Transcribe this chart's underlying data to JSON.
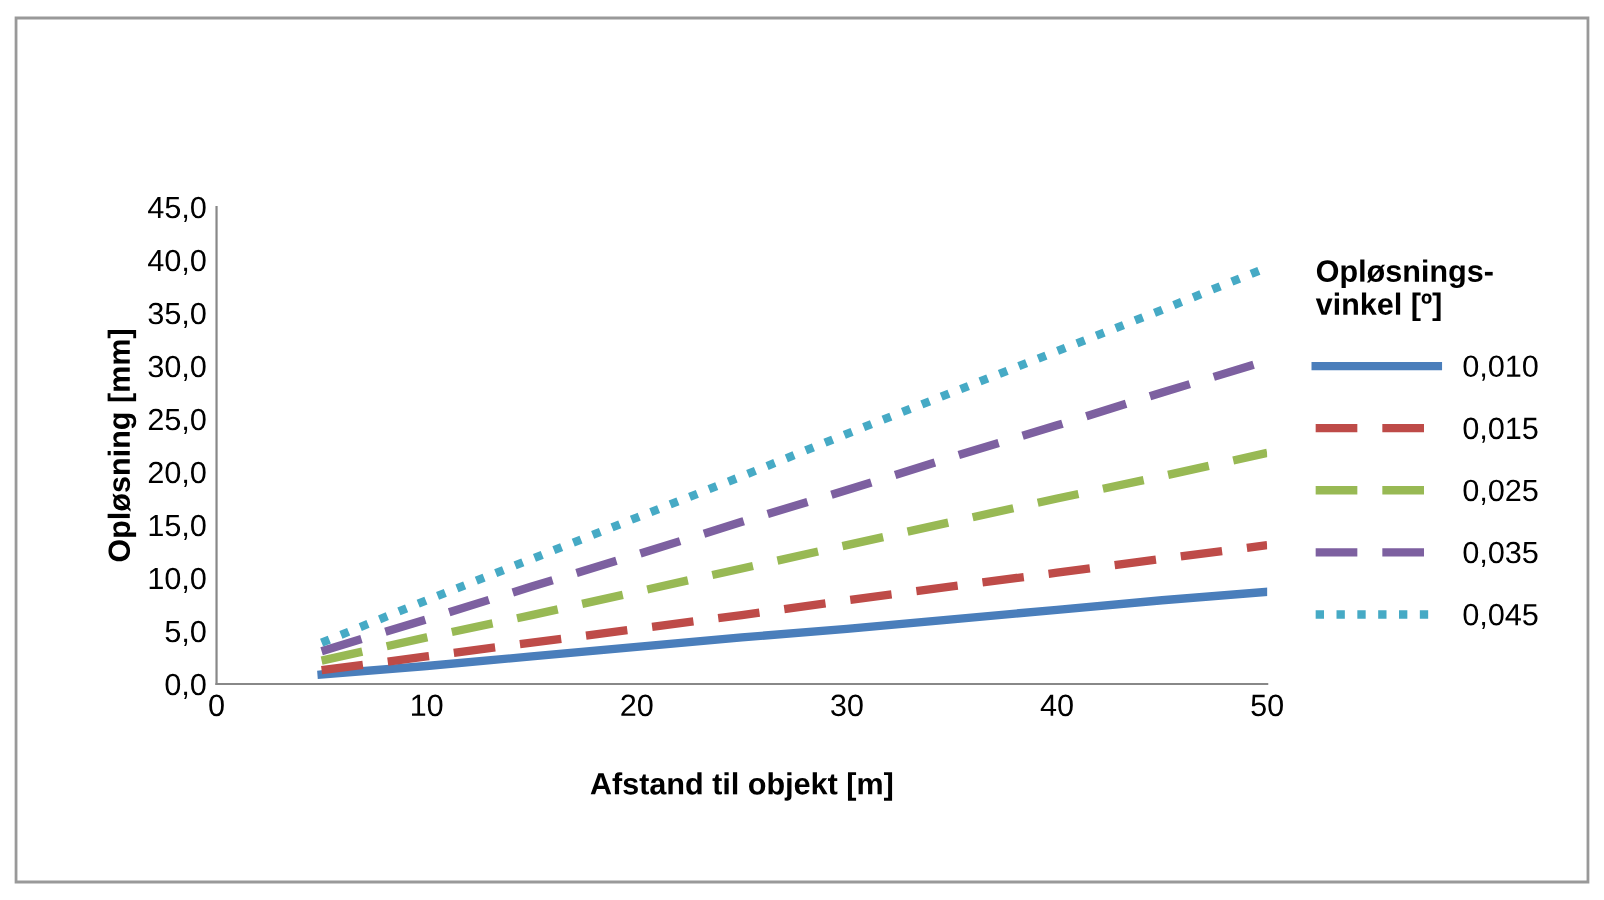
{
  "chart_data": {
    "type": "line",
    "xlabel": "Afstand til objekt [m]",
    "ylabel": "Opløsning [mm]",
    "legend_title": "Opløsnings-\nvinkel [º]",
    "x": [
      5,
      10,
      15,
      20,
      25,
      30,
      35,
      40,
      45,
      50
    ],
    "series": [
      {
        "name": "0,010",
        "color": "#4a7ebb",
        "line_style": "solid",
        "values": [
          0.9,
          1.7,
          2.6,
          3.5,
          4.4,
          5.2,
          6.1,
          7.0,
          7.9,
          8.7
        ]
      },
      {
        "name": "0,015",
        "color": "#be4b48",
        "line_style": "dashed",
        "values": [
          1.3,
          2.6,
          3.9,
          5.2,
          6.5,
          7.9,
          9.2,
          10.5,
          11.8,
          13.1
        ]
      },
      {
        "name": "0,025",
        "color": "#98b954",
        "line_style": "dashed",
        "values": [
          2.2,
          4.4,
          6.5,
          8.7,
          10.9,
          13.1,
          15.3,
          17.5,
          19.6,
          21.8
        ]
      },
      {
        "name": "0,035",
        "color": "#7d60a0",
        "line_style": "dashed",
        "values": [
          3.1,
          6.1,
          9.2,
          12.2,
          15.3,
          18.3,
          21.4,
          24.4,
          27.5,
          30.5
        ]
      },
      {
        "name": "0,045",
        "color": "#46aac5",
        "line_style": "dotted",
        "values": [
          3.9,
          7.9,
          11.8,
          15.7,
          19.6,
          23.6,
          27.5,
          31.4,
          35.3,
          39.3
        ]
      }
    ],
    "xlim": [
      0,
      50
    ],
    "xticks": [
      0,
      10,
      20,
      30,
      40,
      50
    ],
    "ylim": [
      0,
      45
    ],
    "yticks": [
      {
        "value": 0,
        "label": "0,0"
      },
      {
        "value": 5,
        "label": "5,0"
      },
      {
        "value": 10,
        "label": "10,0"
      },
      {
        "value": 15,
        "label": "15,0"
      },
      {
        "value": 20,
        "label": "20,0"
      },
      {
        "value": 25,
        "label": "25,0"
      },
      {
        "value": 30,
        "label": "30,0"
      },
      {
        "value": 35,
        "label": "35,0"
      },
      {
        "value": 40,
        "label": "40,0"
      },
      {
        "value": 45,
        "label": "45,0"
      }
    ],
    "grid": false,
    "legend": "right",
    "marker": "none"
  }
}
